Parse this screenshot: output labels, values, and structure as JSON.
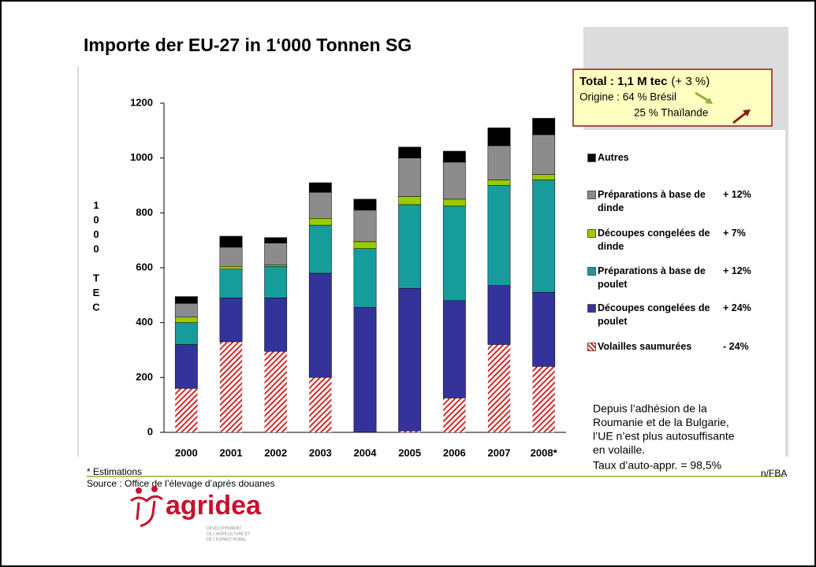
{
  "chart_data": {
    "type": "bar",
    "stacked": true,
    "title": "Importe der EU-27 in 1‘000 Tonnen SG",
    "y_label": "1000 TEC",
    "categories": [
      "2000",
      "2001",
      "2002",
      "2003",
      "2004",
      "2005",
      "2006",
      "2007",
      "2008*"
    ],
    "series": [
      {
        "name": "Volailles saumurées",
        "change": "- 24%",
        "color": "#d62828",
        "pattern": "hatch",
        "values": [
          160,
          330,
          295,
          200,
          0,
          5,
          125,
          320,
          240
        ]
      },
      {
        "name": "Découpes congelées de poulet",
        "change": "+ 24%",
        "color": "#33339a",
        "values": [
          160,
          160,
          195,
          380,
          455,
          520,
          355,
          215,
          270
        ]
      },
      {
        "name": "Préparations à base de poulet",
        "change": "+ 12%",
        "color": "#179c9c",
        "values": [
          80,
          105,
          115,
          175,
          215,
          305,
          345,
          365,
          410
        ]
      },
      {
        "name": "Découpes congelées de dinde",
        "change": "+ 7%",
        "color": "#99cc00",
        "values": [
          20,
          10,
          5,
          25,
          25,
          30,
          25,
          20,
          20
        ]
      },
      {
        "name": "Préparations à base de dinde",
        "change": "+ 12%",
        "color": "#8c8c8c",
        "values": [
          50,
          70,
          80,
          95,
          115,
          140,
          135,
          125,
          145
        ]
      },
      {
        "name": "Autres",
        "color": "#000000",
        "values": [
          25,
          40,
          20,
          35,
          40,
          40,
          40,
          65,
          60
        ]
      }
    ],
    "ylim": [
      0,
      1200
    ],
    "yticks": [
      0,
      200,
      400,
      600,
      800,
      1000,
      1200
    ],
    "grid": false,
    "info_box": {
      "total": "Total : 1,1 M tec",
      "total_change": "(+ 3 %)",
      "origin": "Origine : 64 % Brésil",
      "origin2": "25 % Thaïlande"
    },
    "note_lines": [
      "Depuis l’adhésion de la",
      "Roumanie et de la Bulgarie,",
      "l’UE n’est plus autosuffisante",
      "en volaille.",
      "Taux d’auto-appr. = 98,5%"
    ],
    "footnote": "* Estimations",
    "source": "Source : Office de l’élevage d’après douanes",
    "credit": "n/FBA"
  },
  "logo": {
    "name": "agridea",
    "tagline": [
      "DÉVELOPPEMENT",
      "DE L’AGRICULTURE ET",
      "DE L’ESPACE RURAL"
    ]
  }
}
